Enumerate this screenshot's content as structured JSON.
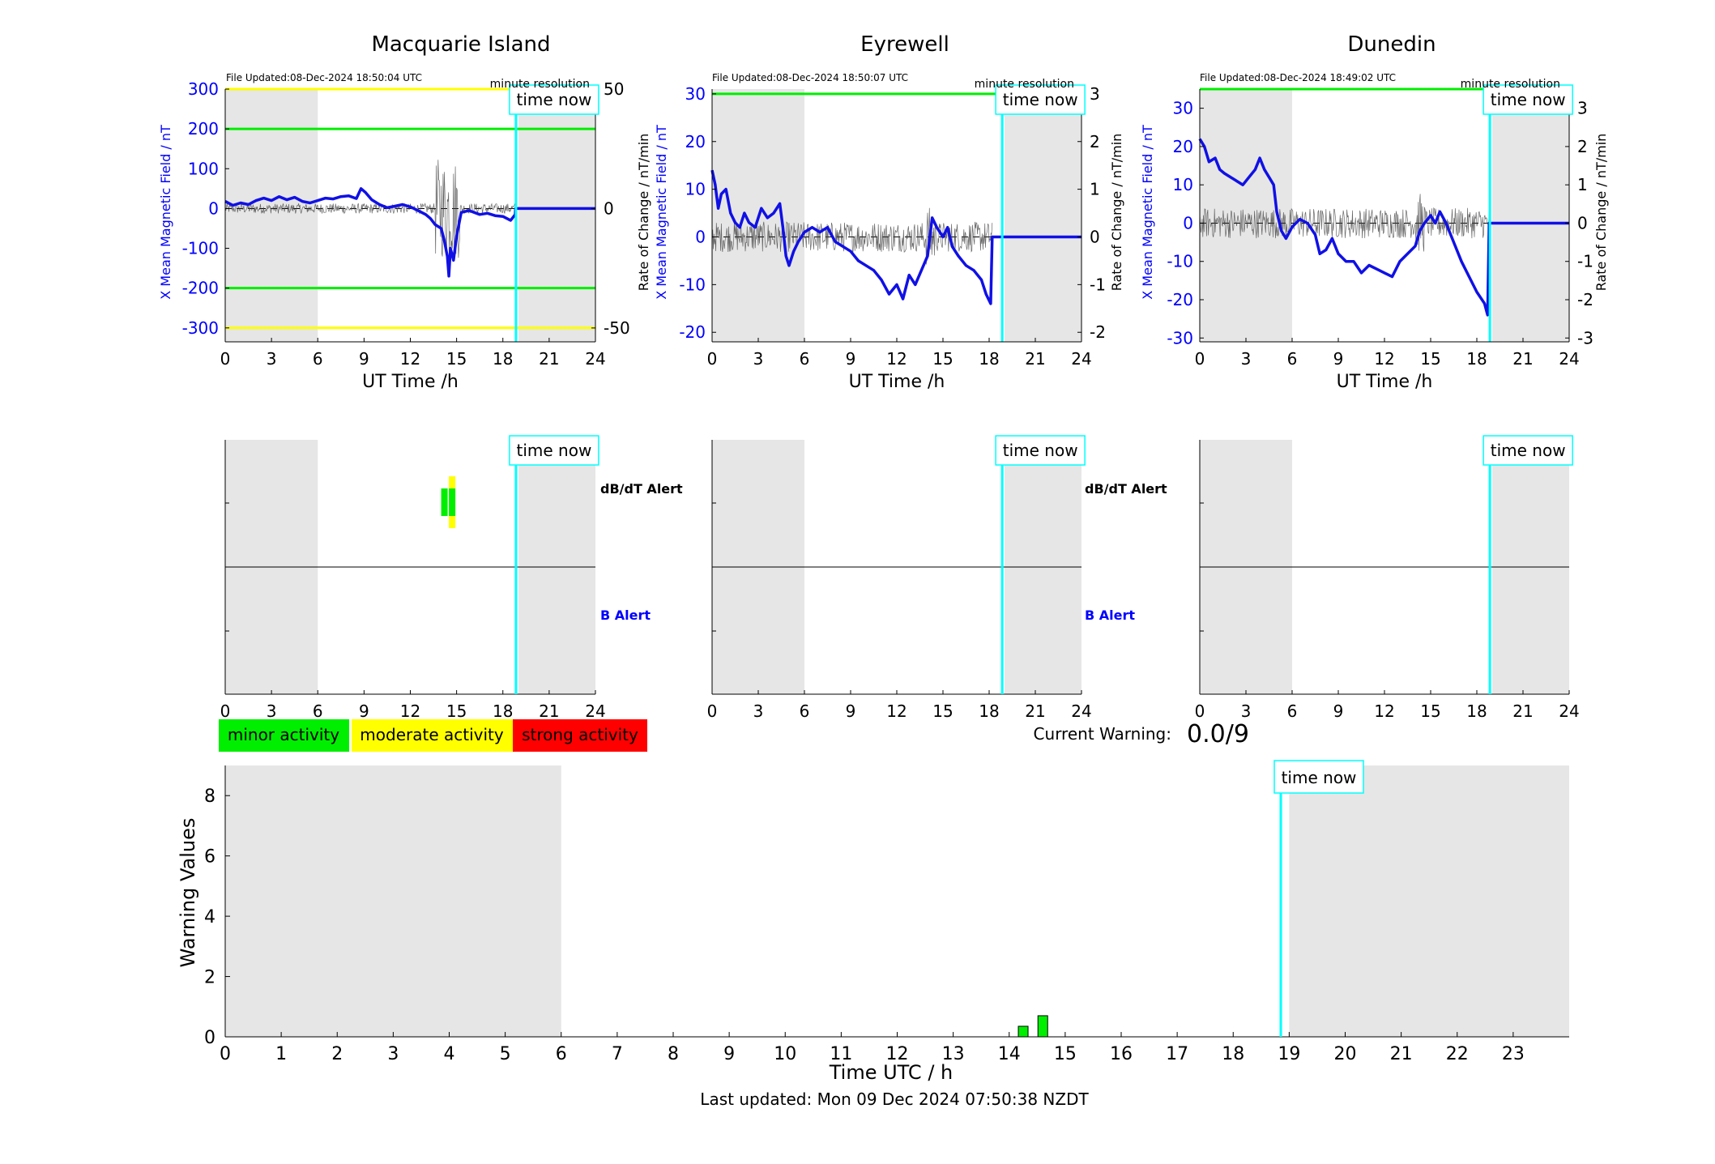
{
  "colors": {
    "x_axis_blue": "#0000ff",
    "trace_blue": "#1010e6",
    "threshold_green": "#00ee00",
    "threshold_yellow": "#ffff00",
    "time_now_cyan": "#00ffff",
    "night_shade": "#e6e6e6",
    "minor": "#00ee00",
    "moderate": "#ffff00",
    "strong": "#ff0000"
  },
  "stations": [
    {
      "title": "Macquarie Island",
      "file_updated": "File Updated:08-Dec-2024 18:50:04 UTC",
      "resolution": "minute resolution",
      "left_ylabel": "X Mean Magnetic Field / nT",
      "right_ylabel": "",
      "ylim": [
        -335,
        300
      ],
      "yticks": [
        300,
        200,
        100,
        0,
        -100,
        -200,
        -300
      ],
      "ytick_labels": [
        "300",
        "200",
        "100",
        "0",
        "-100",
        "-200",
        "-300"
      ],
      "rate_ylim": [
        -55.8,
        50
      ],
      "rate_ticks": [
        50,
        0,
        -50
      ],
      "rate_tick_labels": [
        "50",
        "0",
        "-50"
      ],
      "thresholds": [
        {
          "value": 300,
          "color": "yellow"
        },
        {
          "value": 200,
          "color": "green"
        },
        {
          "value": -200,
          "color": "green"
        },
        {
          "value": -300,
          "color": "yellow"
        }
      ],
      "field_trace": [
        [
          0,
          18
        ],
        [
          0.5,
          8
        ],
        [
          1,
          14
        ],
        [
          1.5,
          10
        ],
        [
          2,
          20
        ],
        [
          2.5,
          26
        ],
        [
          3,
          20
        ],
        [
          3.5,
          30
        ],
        [
          4,
          22
        ],
        [
          4.5,
          28
        ],
        [
          5,
          18
        ],
        [
          5.5,
          14
        ],
        [
          6,
          20
        ],
        [
          6.5,
          26
        ],
        [
          7,
          24
        ],
        [
          7.5,
          30
        ],
        [
          8,
          32
        ],
        [
          8.5,
          25
        ],
        [
          8.8,
          50
        ],
        [
          9.1,
          40
        ],
        [
          9.5,
          22
        ],
        [
          10,
          10
        ],
        [
          10.5,
          2
        ],
        [
          11,
          6
        ],
        [
          11.5,
          10
        ],
        [
          12,
          4
        ],
        [
          12.5,
          -5
        ],
        [
          13,
          -15
        ],
        [
          13.3,
          -25
        ],
        [
          13.6,
          -40
        ],
        [
          14,
          -50
        ],
        [
          14.2,
          -80
        ],
        [
          14.4,
          -120
        ],
        [
          14.5,
          -170
        ],
        [
          14.6,
          -100
        ],
        [
          14.8,
          -130
        ],
        [
          15,
          -70
        ],
        [
          15.3,
          -10
        ],
        [
          15.8,
          -5
        ],
        [
          16.5,
          -15
        ],
        [
          17,
          -12
        ],
        [
          17.5,
          -18
        ],
        [
          18,
          -20
        ],
        [
          18.5,
          -30
        ],
        [
          18.8,
          -15
        ],
        [
          18.82,
          0
        ],
        [
          24,
          0
        ]
      ],
      "dbdt_alerts": [
        {
          "t": 14.0,
          "t_end": 14.35,
          "level": "minor"
        },
        {
          "t": 14.5,
          "t_end": 14.9,
          "level": "moderate"
        }
      ]
    },
    {
      "title": "Eyrewell",
      "file_updated": "File Updated:08-Dec-2024 18:50:07 UTC",
      "resolution": "minute resolution",
      "left_ylabel": "X Mean Magnetic Field / nT",
      "right_ylabel": "Rate of Change / nT/min",
      "ylim": [
        -22,
        31
      ],
      "yticks": [
        30,
        20,
        10,
        0,
        -10,
        -20
      ],
      "ytick_labels": [
        "30",
        "20",
        "10",
        "0",
        "-10",
        "-20"
      ],
      "rate_ylim": [
        -2.2,
        3.1
      ],
      "rate_ticks": [
        3,
        2,
        1,
        0,
        -1,
        -2
      ],
      "rate_tick_labels": [
        "3",
        "2",
        "1",
        "0",
        "-1",
        "-2"
      ],
      "thresholds": [
        {
          "value": 30,
          "color": "green"
        }
      ],
      "field_trace": [
        [
          0,
          14
        ],
        [
          0.2,
          11
        ],
        [
          0.4,
          6
        ],
        [
          0.6,
          9
        ],
        [
          0.9,
          10
        ],
        [
          1.2,
          5
        ],
        [
          1.5,
          3
        ],
        [
          1.8,
          2
        ],
        [
          2.1,
          5
        ],
        [
          2.4,
          3
        ],
        [
          2.8,
          2
        ],
        [
          3.2,
          6
        ],
        [
          3.6,
          4
        ],
        [
          4,
          5
        ],
        [
          4.4,
          7
        ],
        [
          4.6,
          2
        ],
        [
          4.8,
          -4
        ],
        [
          5,
          -6
        ],
        [
          5.3,
          -3
        ],
        [
          5.6,
          -1
        ],
        [
          6,
          1
        ],
        [
          6.5,
          2
        ],
        [
          7,
          1
        ],
        [
          7.5,
          2
        ],
        [
          8,
          -1
        ],
        [
          8.5,
          -2
        ],
        [
          9,
          -3
        ],
        [
          9.5,
          -5
        ],
        [
          10,
          -6
        ],
        [
          10.5,
          -7
        ],
        [
          11,
          -9
        ],
        [
          11.5,
          -12
        ],
        [
          12,
          -10
        ],
        [
          12.4,
          -13
        ],
        [
          12.8,
          -8
        ],
        [
          13.2,
          -10
        ],
        [
          13.6,
          -7
        ],
        [
          14,
          -4
        ],
        [
          14.3,
          4
        ],
        [
          14.6,
          2
        ],
        [
          15,
          0
        ],
        [
          15.3,
          2
        ],
        [
          15.6,
          -2
        ],
        [
          16,
          -4
        ],
        [
          16.5,
          -6
        ],
        [
          17,
          -7
        ],
        [
          17.5,
          -9
        ],
        [
          17.8,
          -12
        ],
        [
          18.1,
          -14
        ],
        [
          18.2,
          0
        ],
        [
          24,
          0
        ]
      ],
      "dbdt_alerts": []
    },
    {
      "title": "Dunedin",
      "file_updated": "File Updated:08-Dec-2024 18:49:02 UTC",
      "resolution": "minute resolution",
      "left_ylabel": "X Mean Magnetic Field / nT",
      "right_ylabel": "Rate of Change / nT/min",
      "ylim": [
        -31,
        35
      ],
      "yticks": [
        30,
        20,
        10,
        0,
        -10,
        -20,
        -30
      ],
      "ytick_labels": [
        "30",
        "20",
        "10",
        "0",
        "-10",
        "-20",
        "-30"
      ],
      "rate_ylim": [
        -3.1,
        3.5
      ],
      "rate_ticks": [
        3,
        2,
        1,
        0,
        -1,
        -2,
        -3
      ],
      "rate_tick_labels": [
        "3",
        "2",
        "1",
        "0",
        "-1",
        "-2",
        "-3"
      ],
      "thresholds": [
        {
          "value": 35,
          "color": "green"
        }
      ],
      "field_trace": [
        [
          0,
          22
        ],
        [
          0.3,
          20
        ],
        [
          0.6,
          16
        ],
        [
          1,
          17
        ],
        [
          1.3,
          14
        ],
        [
          1.6,
          13
        ],
        [
          2,
          12
        ],
        [
          2.4,
          11
        ],
        [
          2.8,
          10
        ],
        [
          3.2,
          12
        ],
        [
          3.6,
          14
        ],
        [
          3.9,
          17
        ],
        [
          4.2,
          14
        ],
        [
          4.5,
          12
        ],
        [
          4.8,
          10
        ],
        [
          5,
          3
        ],
        [
          5.3,
          -2
        ],
        [
          5.6,
          -4
        ],
        [
          6,
          -1
        ],
        [
          6.5,
          1
        ],
        [
          7,
          0
        ],
        [
          7.5,
          -3
        ],
        [
          7.8,
          -8
        ],
        [
          8.2,
          -7
        ],
        [
          8.6,
          -4
        ],
        [
          9,
          -8
        ],
        [
          9.5,
          -10
        ],
        [
          10,
          -10
        ],
        [
          10.5,
          -13
        ],
        [
          11,
          -11
        ],
        [
          11.5,
          -12
        ],
        [
          12,
          -13
        ],
        [
          12.5,
          -14
        ],
        [
          13,
          -10
        ],
        [
          13.5,
          -8
        ],
        [
          14,
          -6
        ],
        [
          14.3,
          -2
        ],
        [
          14.6,
          0
        ],
        [
          15,
          2
        ],
        [
          15.3,
          0
        ],
        [
          15.6,
          3
        ],
        [
          16,
          0
        ],
        [
          16.5,
          -5
        ],
        [
          17,
          -10
        ],
        [
          17.5,
          -14
        ],
        [
          18,
          -18
        ],
        [
          18.5,
          -21
        ],
        [
          18.7,
          -24
        ],
        [
          18.8,
          0
        ],
        [
          24,
          0
        ]
      ],
      "dbdt_alerts": []
    }
  ],
  "alert_panel": {
    "dbdt_label": "dB/dT Alert",
    "b_label": "B Alert"
  },
  "time_now_label": "time now",
  "xaxis": {
    "label": "UT Time /h",
    "ticks": [
      0,
      3,
      6,
      9,
      12,
      15,
      18,
      21,
      24
    ],
    "tick_labels": [
      "0",
      "3",
      "6",
      "9",
      "12",
      "15",
      "18",
      "21",
      "24"
    ],
    "range": [
      0,
      24
    ],
    "night_ranges": [
      [
        0,
        6
      ],
      [
        19,
        24
      ]
    ],
    "time_now": 18.85
  },
  "legend": {
    "minor": "minor activity",
    "moderate": "moderate activity",
    "strong": "strong activity"
  },
  "current_warning": {
    "label": "Current Warning:",
    "value": "0.0/9"
  },
  "chart_data": [
    {
      "type": "bar",
      "title": "",
      "xlabel": "Time UTC / h",
      "ylabel": "Warning Values",
      "xlim": [
        0,
        24
      ],
      "ylim": [
        0,
        9
      ],
      "xticks": [
        0,
        1,
        2,
        3,
        4,
        5,
        6,
        7,
        8,
        9,
        10,
        11,
        12,
        13,
        14,
        15,
        16,
        17,
        18,
        19,
        20,
        21,
        22,
        23
      ],
      "xtick_labels": [
        "0",
        "1",
        "2",
        "3",
        "4",
        "5",
        "6",
        "7",
        "8",
        "9",
        "10",
        "11",
        "12",
        "13",
        "14",
        "15",
        "16",
        "17",
        "18",
        "19",
        "20",
        "21",
        "22",
        "23"
      ],
      "yticks": [
        0,
        2,
        4,
        6,
        8
      ],
      "ytick_labels": [
        "0",
        "2",
        "4",
        "6",
        "8"
      ],
      "night_ranges": [
        [
          0,
          6
        ],
        [
          19,
          24
        ]
      ],
      "time_now": 18.85,
      "bars": [
        {
          "x": 14.25,
          "value": 0.35,
          "level": "minor"
        },
        {
          "x": 14.6,
          "value": 0.7,
          "level": "minor"
        }
      ]
    }
  ],
  "footer": {
    "last_updated": "Last updated: Mon 09 Dec 2024 07:50:38 NZDT"
  }
}
